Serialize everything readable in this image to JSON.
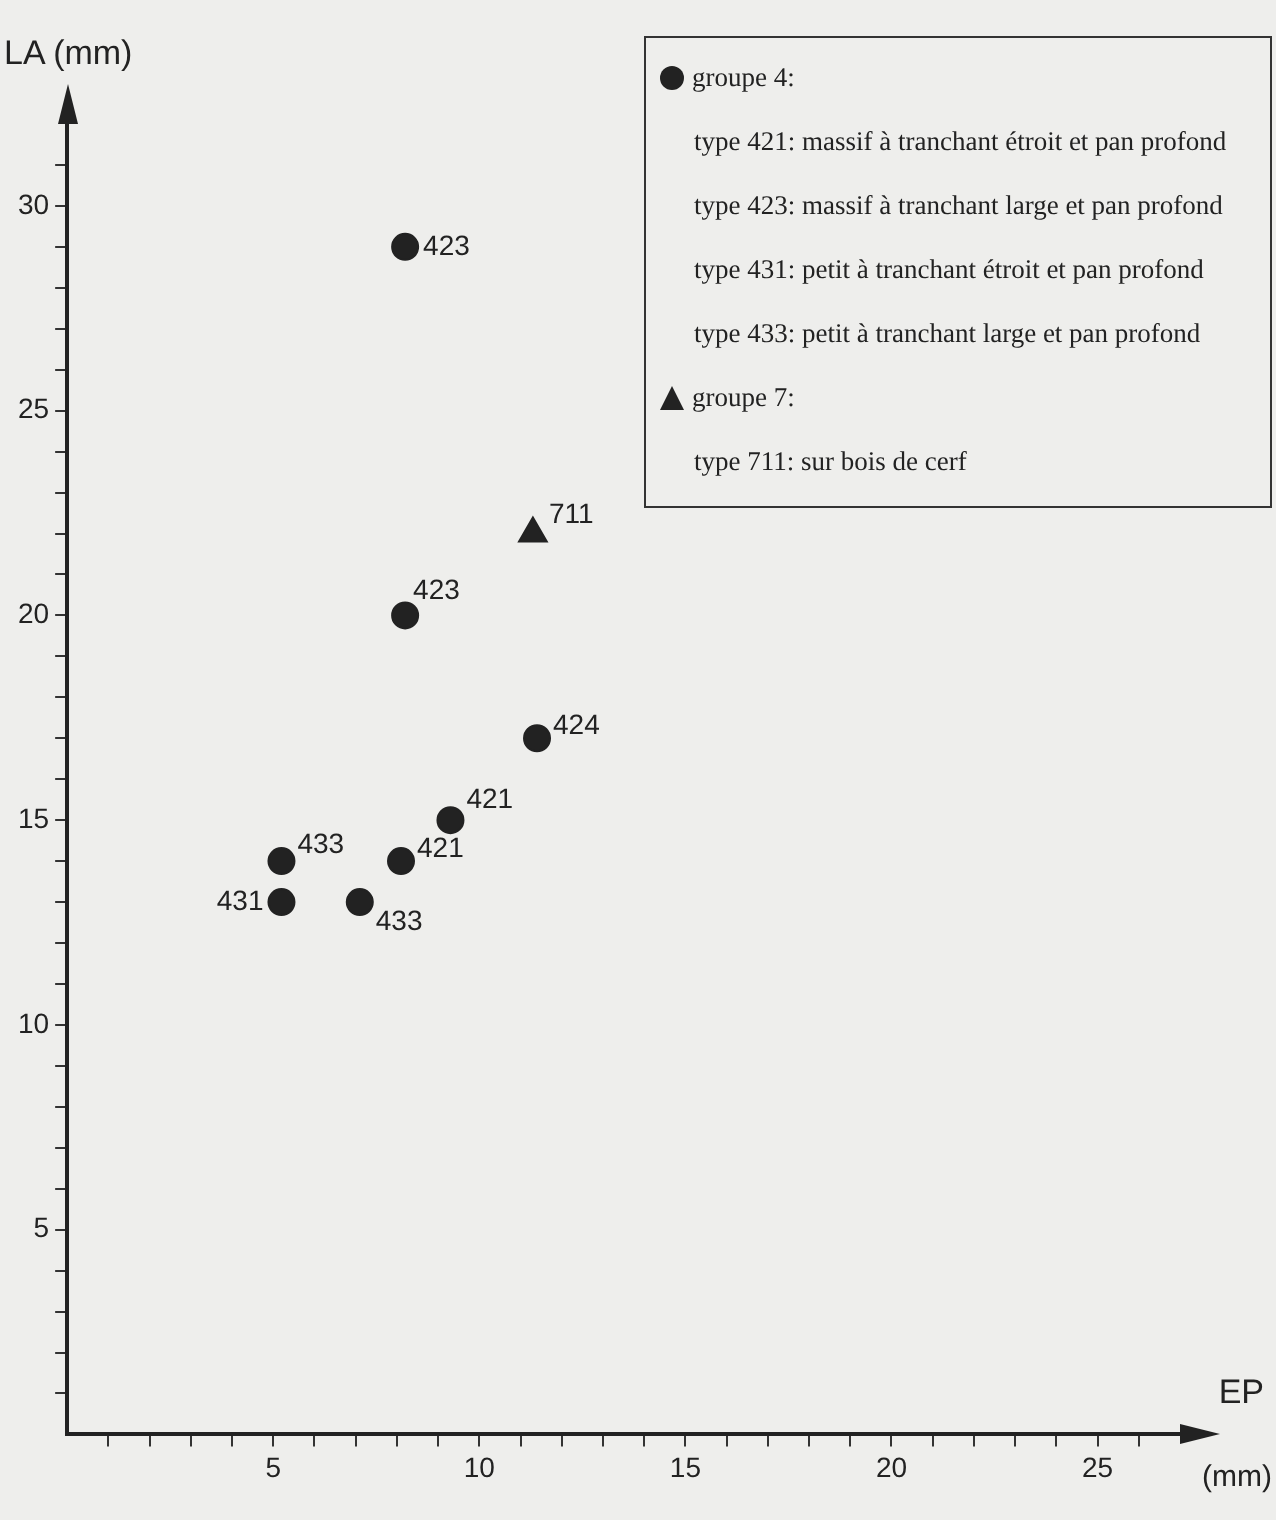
{
  "chart_data": {
    "type": "scatter",
    "xlabel": "EP",
    "ylabel": "LA (mm)",
    "xlim": [
      0,
      27
    ],
    "ylim": [
      0,
      32
    ],
    "xticks": [
      {
        "value": 1,
        "label": null
      },
      {
        "value": 2,
        "label": null
      },
      {
        "value": 3,
        "label": null
      },
      {
        "value": 4,
        "label": null
      },
      5,
      {
        "value": 6,
        "label": null
      },
      {
        "value": 7,
        "label": null
      },
      {
        "value": 8,
        "label": null
      },
      {
        "value": 9,
        "label": null
      },
      10,
      {
        "value": 11,
        "label": null
      },
      {
        "value": 12,
        "label": null
      },
      {
        "value": 13,
        "label": null
      },
      {
        "value": 14,
        "label": null
      },
      15,
      {
        "value": 16,
        "label": null
      },
      {
        "value": 17,
        "label": null
      },
      {
        "value": 18,
        "label": null
      },
      {
        "value": 19,
        "label": null
      },
      20,
      {
        "value": 21,
        "label": null
      },
      {
        "value": 22,
        "label": null
      },
      {
        "value": 23,
        "label": null
      },
      {
        "value": 24,
        "label": null
      },
      25,
      {
        "value": 26,
        "label": null
      }
    ],
    "yticks": [
      {
        "value": 1,
        "label": null
      },
      {
        "value": 2,
        "label": null
      },
      {
        "value": 3,
        "label": null
      },
      {
        "value": 4,
        "label": null
      },
      5,
      {
        "value": 6,
        "label": null
      },
      {
        "value": 7,
        "label": null
      },
      {
        "value": 8,
        "label": null
      },
      {
        "value": 9,
        "label": null
      },
      10,
      {
        "value": 11,
        "label": null
      },
      {
        "value": 12,
        "label": null
      },
      {
        "value": 13,
        "label": null
      },
      {
        "value": 14,
        "label": null
      },
      15,
      {
        "value": 16,
        "label": null
      },
      {
        "value": 17,
        "label": null
      },
      {
        "value": 18,
        "label": null
      },
      {
        "value": 19,
        "label": null
      },
      20,
      {
        "value": 21,
        "label": null
      },
      {
        "value": 22,
        "label": null
      },
      {
        "value": 23,
        "label": null
      },
      {
        "value": 24,
        "label": null
      },
      25,
      {
        "value": 26,
        "label": null
      },
      {
        "value": 27,
        "label": null
      },
      {
        "value": 28,
        "label": null
      },
      {
        "value": 29,
        "label": null
      },
      30,
      {
        "value": 31,
        "label": null
      }
    ],
    "grid": false,
    "legend": "top right",
    "series": [
      {
        "name": "groupe 4:",
        "color": "#222222",
        "marker": "circle",
        "x": [
          8.2,
          8.2,
          11.4,
          9.3,
          8.1,
          5.2,
          5.2,
          7.1
        ],
        "values": [
          29,
          20,
          17,
          15,
          14,
          14,
          13,
          13
        ]
      },
      {
        "name": "groupe 7:",
        "color": "#222222",
        "marker": "triangle",
        "x": [
          11.3
        ],
        "values": [
          22
        ]
      }
    ],
    "annotations": [
      "type 421: massif à tranchant étroit et pan profond",
      "type 423: massif à tranchant large et pan profond",
      "type 431: petit à tranchant étroit et pan profond",
      "type 433: petit à tranchant large et pan profond",
      "type 711: sur bois de cerf",
      "(mm)",
      {
        "text": "423",
        "x": 8.2,
        "y": 29
      },
      {
        "text": "423",
        "x": 8.2,
        "y": 20
      },
      {
        "text": "424",
        "x": 11.4,
        "y": 17
      },
      {
        "text": "421",
        "x": 9.3,
        "y": 15
      },
      {
        "text": "421",
        "x": 8.1,
        "y": 14
      },
      {
        "text": "433",
        "x": 5.2,
        "y": 14
      },
      {
        "text": "431",
        "x": 5.2,
        "y": 13
      },
      {
        "text": "433",
        "x": 7.1,
        "y": 13
      },
      {
        "text": "711",
        "x": 11.3,
        "y": 22
      }
    ]
  }
}
